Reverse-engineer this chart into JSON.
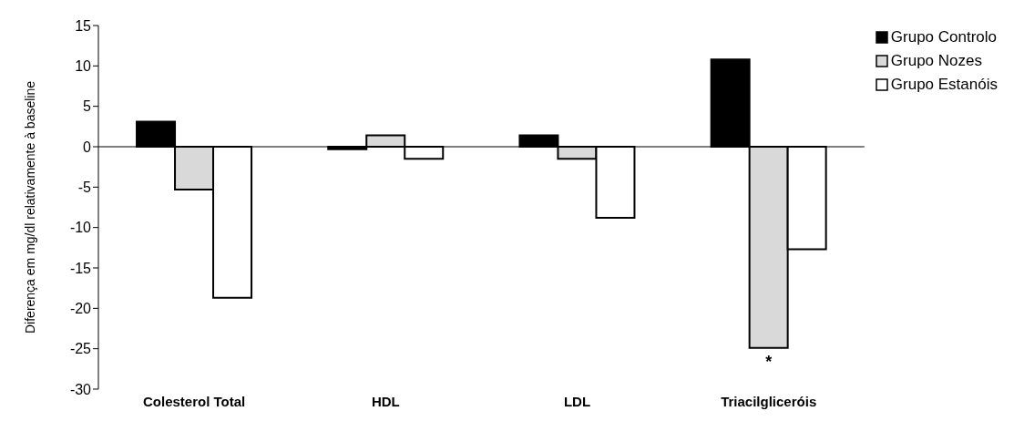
{
  "chart_data": {
    "type": "bar",
    "ylabel": "Diferença em mg/dl relativamente à baseline",
    "categories": [
      "Colesterol Total",
      "HDL",
      "LDL",
      "Triacilgliceróis"
    ],
    "series": [
      {
        "name": "Grupo Controlo",
        "color": "#000000",
        "values": [
          3.1,
          -0.3,
          1.4,
          10.8
        ]
      },
      {
        "name": "Grupo Nozes",
        "color": "#d9d9d9",
        "values": [
          -5.3,
          1.4,
          -1.5,
          -24.9
        ]
      },
      {
        "name": "Grupo Estanóis",
        "color": "#ffffff",
        "values": [
          -18.7,
          -1.5,
          -8.8,
          -12.7
        ]
      }
    ],
    "ylim": [
      -30,
      15
    ],
    "yticks": [
      -30,
      -25,
      -20,
      -15,
      -10,
      -5,
      0,
      5,
      10,
      15
    ],
    "legend": "top right",
    "annotations": [
      {
        "text": "*",
        "x": "Triacilgliceróis",
        "y": -24.9
      }
    ]
  }
}
